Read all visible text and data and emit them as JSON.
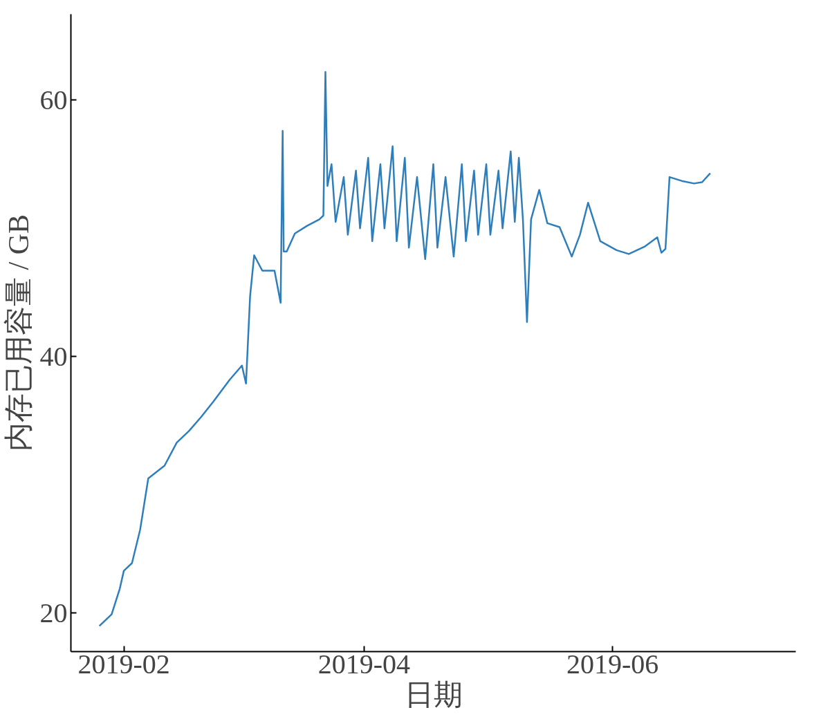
{
  "chart_data": {
    "type": "line",
    "xlabel": "日期",
    "ylabel": "内存已用容量 / GB",
    "xlim": [
      "2019-01-19",
      "2019-07-16"
    ],
    "ylim": [
      17,
      66.7
    ],
    "xticks": [
      "2019-02",
      "2019-04",
      "2019-06"
    ],
    "yticks": [
      20,
      40,
      60
    ],
    "line_style": "solid",
    "series": [
      {
        "color": "#2e7ebc",
        "x": [
          "2019-01-26",
          "2019-01-29",
          "2019-01-31",
          "2019-02-01",
          "2019-02-03",
          "2019-02-05",
          "2019-02-07",
          "2019-02-11",
          "2019-02-14",
          "2019-02-17",
          "2019-02-20",
          "2019-02-23",
          "2019-02-27",
          "2019-03-02",
          "2019-03-03",
          "2019-03-04",
          "2019-03-05",
          "2019-03-07",
          "2019-03-10",
          "2019-03-11T12:00",
          "2019-03-12",
          "2019-03-12T06:00",
          "2019-03-13",
          "2019-03-15",
          "2019-03-18",
          "2019-03-21",
          "2019-03-22",
          "2019-03-22T12:00",
          "2019-03-23",
          "2019-03-24",
          "2019-03-25",
          "2019-03-27",
          "2019-03-28",
          "2019-03-30",
          "2019-03-31",
          "2019-04-02",
          "2019-04-03",
          "2019-04-05",
          "2019-04-06",
          "2019-04-08",
          "2019-04-09",
          "2019-04-11",
          "2019-04-12",
          "2019-04-14",
          "2019-04-16",
          "2019-04-18",
          "2019-04-19",
          "2019-04-21",
          "2019-04-23",
          "2019-04-25",
          "2019-04-26",
          "2019-04-28",
          "2019-04-29",
          "2019-05-01",
          "2019-05-02",
          "2019-05-04",
          "2019-05-05",
          "2019-05-07",
          "2019-05-08",
          "2019-05-09",
          "2019-05-10",
          "2019-05-11",
          "2019-05-12",
          "2019-05-14",
          "2019-05-16",
          "2019-05-19",
          "2019-05-22",
          "2019-05-24",
          "2019-05-26",
          "2019-05-29",
          "2019-06-02",
          "2019-06-05",
          "2019-06-09",
          "2019-06-12",
          "2019-06-13",
          "2019-06-14",
          "2019-06-15",
          "2019-06-18",
          "2019-06-21",
          "2019-06-23",
          "2019-06-25"
        ],
        "values": [
          19.0,
          19.9,
          21.9,
          23.3,
          23.9,
          26.5,
          30.5,
          31.5,
          33.3,
          34.2,
          35.3,
          36.5,
          38.2,
          39.3,
          37.9,
          44.7,
          47.9,
          46.7,
          46.7,
          44.2,
          57.6,
          48.2,
          48.2,
          49.6,
          50.2,
          50.7,
          51.0,
          62.2,
          53.3,
          55.0,
          50.5,
          54.0,
          49.5,
          54.5,
          50.0,
          55.5,
          49.0,
          55.0,
          50.0,
          56.4,
          49.0,
          55.5,
          48.5,
          54.0,
          47.6,
          55.0,
          48.5,
          54.0,
          47.8,
          55.0,
          49.0,
          54.5,
          49.5,
          55.0,
          49.5,
          54.5,
          50.0,
          56.0,
          50.5,
          55.5,
          50.7,
          42.7,
          50.7,
          53.0,
          50.4,
          50.1,
          47.8,
          49.5,
          52.0,
          49.0,
          48.3,
          48.0,
          48.6,
          49.3,
          48.1,
          48.4,
          54.0,
          53.7,
          53.5,
          53.6,
          54.3
        ]
      }
    ]
  }
}
